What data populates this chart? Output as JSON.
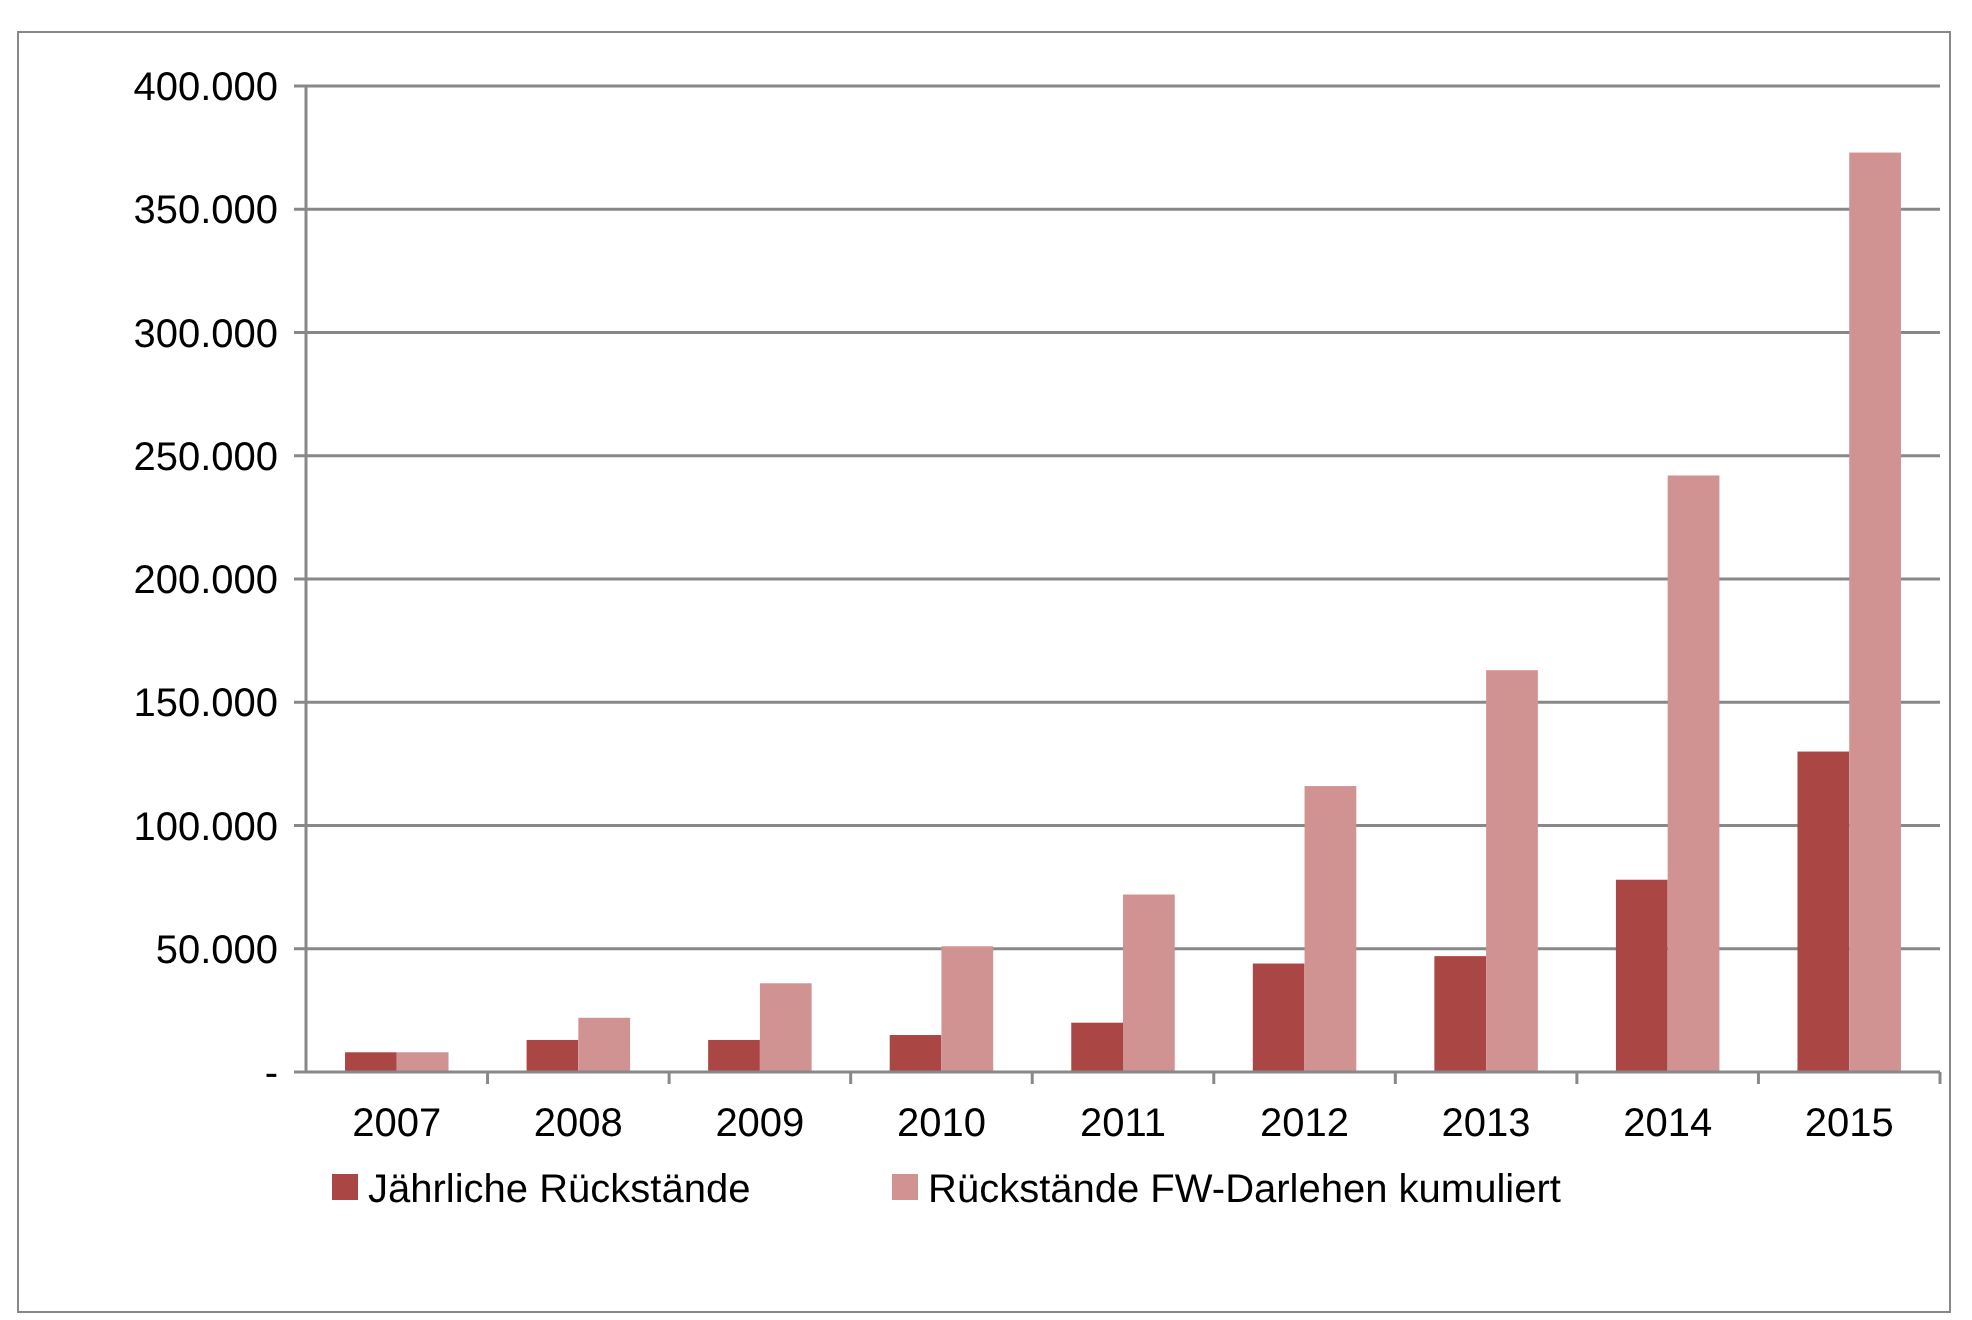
{
  "chart_data": {
    "type": "bar",
    "categories": [
      "2007",
      "2008",
      "2009",
      "2010",
      "2011",
      "2012",
      "2013",
      "2014",
      "2015"
    ],
    "series": [
      {
        "name": "Jährliche Rückstände",
        "color": "#aa4644",
        "values": [
          8000,
          13000,
          13000,
          15000,
          20000,
          44000,
          47000,
          78000,
          130000
        ]
      },
      {
        "name": "Rückstände FW-Darlehen kumuliert",
        "color": "#d19392",
        "values": [
          8000,
          22000,
          36000,
          51000,
          72000,
          116000,
          163000,
          242000,
          373000
        ]
      }
    ],
    "ylim": [
      0,
      400000
    ],
    "yticks": [
      {
        "value": 0,
        "label": "-"
      },
      {
        "value": 50000,
        "label": "50.000"
      },
      {
        "value": 100000,
        "label": "100.000"
      },
      {
        "value": 150000,
        "label": "150.000"
      },
      {
        "value": 200000,
        "label": "200.000"
      },
      {
        "value": 250000,
        "label": "250.000"
      },
      {
        "value": 300000,
        "label": "300.000"
      },
      {
        "value": 350000,
        "label": "350.000"
      },
      {
        "value": 400000,
        "label": "400.000"
      }
    ],
    "grid": "y",
    "legend": "bottom"
  }
}
